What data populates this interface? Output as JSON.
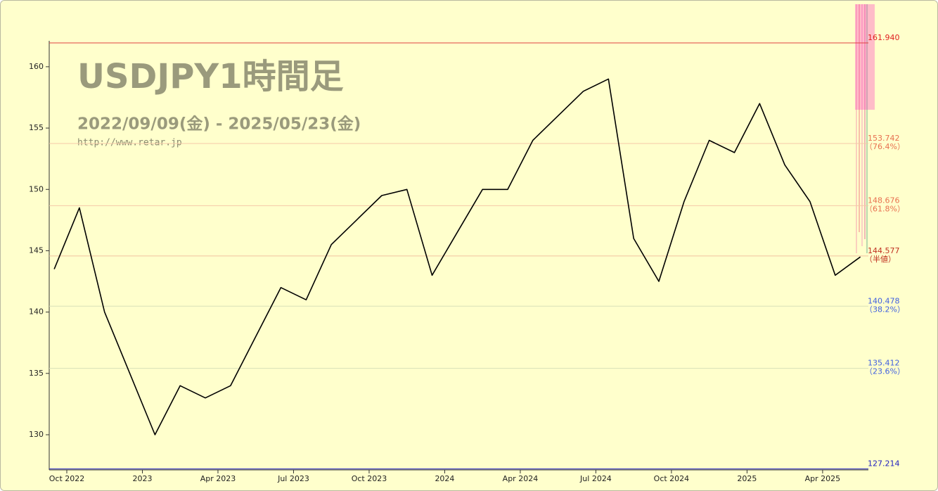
{
  "chart_data": {
    "type": "line",
    "title": "USDJPY1時間足",
    "subtitle": "2022/09/09(金) - 2025/05/23(金)",
    "source": "http://www.retar.jp",
    "x": [
      "2022-09",
      "2022-10",
      "2022-11",
      "2022-12",
      "2023-01",
      "2023-02",
      "2023-03",
      "2023-04",
      "2023-05",
      "2023-06",
      "2023-07",
      "2023-08",
      "2023-09",
      "2023-10",
      "2023-11",
      "2023-12",
      "2024-01",
      "2024-02",
      "2024-03",
      "2024-04",
      "2024-05",
      "2024-06",
      "2024-07",
      "2024-08",
      "2024-09",
      "2024-10",
      "2024-11",
      "2024-12",
      "2025-01",
      "2025-02",
      "2025-03",
      "2025-04",
      "2025-05"
    ],
    "series": [
      {
        "name": "USDJPY",
        "color": "#000000",
        "values": [
          143.5,
          148.5,
          140,
          135,
          130,
          134,
          133,
          134,
          138,
          142,
          141,
          145.5,
          147.5,
          149.5,
          150,
          143,
          146.5,
          150,
          150,
          154,
          156,
          158,
          159,
          146,
          142.5,
          149,
          154,
          153,
          157,
          152,
          149,
          143,
          144.5
        ]
      }
    ],
    "ylim": [
      127.214,
      162
    ],
    "yticks": [
      130,
      135,
      140,
      145,
      150,
      155,
      160
    ],
    "xticks": [
      {
        "value": "2022-10",
        "label": "Oct 2022"
      },
      {
        "value": "2023-01",
        "label": "2023"
      },
      {
        "value": "2023-04",
        "label": "Apr 2023"
      },
      {
        "value": "2023-07",
        "label": "Jul 2023"
      },
      {
        "value": "2023-10",
        "label": "Oct 2023"
      },
      {
        "value": "2024-01",
        "label": "2024"
      },
      {
        "value": "2024-04",
        "label": "Apr 2024"
      },
      {
        "value": "2024-07",
        "label": "Jul 2024"
      },
      {
        "value": "2024-10",
        "label": "Oct 2024"
      },
      {
        "value": "2025-01",
        "label": "2025"
      },
      {
        "value": "2025-04",
        "label": "Apr 2025"
      }
    ],
    "levels": [
      {
        "price": {
          "value": 161.94,
          "label": "161.940"
        },
        "color": "#e02020",
        "line": "#e04040"
      },
      {
        "price": {
          "value": 153.742,
          "label": "153.742"
        },
        "ratio": "（76.4%）",
        "color": "#e87050",
        "line": "#f4c8a8"
      },
      {
        "price": {
          "value": 148.676,
          "label": "148.676"
        },
        "ratio": "（61.8%）",
        "color": "#e87050",
        "line": "#f4c8a8"
      },
      {
        "price": {
          "value": 144.577,
          "label": "144.577"
        },
        "ratio": "（半値）",
        "color": "#c03020",
        "line": "#f0c0a0"
      },
      {
        "price": {
          "value": 140.478,
          "label": "140.478"
        },
        "ratio": "（38.2%）",
        "color": "#4060e0",
        "line": "#d8e0b8"
      },
      {
        "price": {
          "value": 135.412,
          "label": "135.412"
        },
        "ratio": "（23.6%）",
        "color": "#4060e0",
        "line": "#d8e0b8"
      },
      {
        "price": {
          "value": 127.214,
          "label": "127.214"
        },
        "color": "#2020c0",
        "line": "#2020c0"
      }
    ]
  }
}
